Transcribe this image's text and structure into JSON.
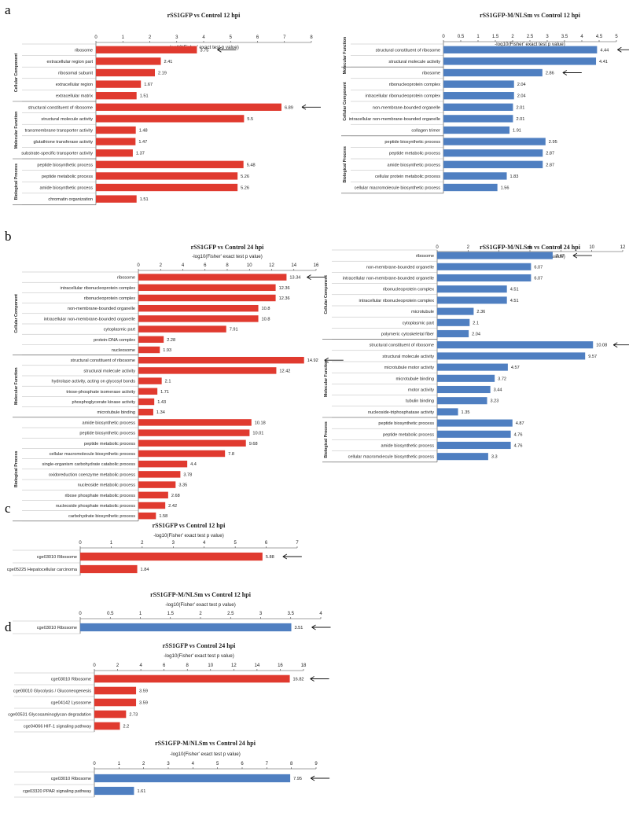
{
  "panels": [
    {
      "letter": "a"
    },
    {
      "letter": "b"
    },
    {
      "letter": "c"
    },
    {
      "letter": "d"
    }
  ],
  "colors": {
    "red": "#e03a2f",
    "blue": "#4f7fc1",
    "axis": "#444444",
    "text": "#222222"
  },
  "chart_data": [
    {
      "id": "a-left",
      "panel": "a",
      "type": "bar",
      "orientation": "horizontal",
      "title": "rSS1GFP vs Control 12 hpi",
      "xlabel": "-log10(Fisher' exact test p value)",
      "xlim": [
        0,
        8
      ],
      "xticks": [
        "0",
        "1",
        "2",
        "3",
        "4",
        "5",
        "6",
        "7",
        "8"
      ],
      "color": "red",
      "grouped": true,
      "categories": [
        "ribosome",
        "extracellular region part",
        "ribosomal subunit",
        "extracellular region",
        "extracellular matrix",
        "structural constituent of ribosome",
        "structural molecule activity",
        "transmembrane transporter activity",
        "glutathione transferase activity",
        "substrate-specific transporter activity",
        "peptide biosynthetic process",
        "peptide metabolic process",
        "amide biosynthetic process",
        "chromatin organization"
      ],
      "values": [
        3.75,
        2.41,
        2.19,
        1.67,
        1.51,
        6.89,
        5.5,
        1.48,
        1.47,
        1.37,
        5.48,
        5.26,
        5.26,
        1.51
      ],
      "value_labels": [
        "3.75",
        "2.41",
        "2.19",
        "1.67",
        "1.51",
        "6.89",
        "5.5",
        "1.48",
        "1.47",
        "1.37",
        "5.48",
        "5.26",
        "5.26",
        "1.51"
      ],
      "groups": [
        {
          "name": "Cellular Component",
          "start": 0,
          "end": 4
        },
        {
          "name": "Molecular Function",
          "start": 5,
          "end": 9
        },
        {
          "name": "Biological Process",
          "start": 10,
          "end": 13
        }
      ],
      "arrows": [
        0,
        5
      ]
    },
    {
      "id": "a-right",
      "panel": "a",
      "type": "bar",
      "orientation": "horizontal",
      "title": "rSS1GFP-M/NLSm vs Control 12 hpi",
      "xlabel": "-log10(Fisher' exact test p value)",
      "xlim": [
        0,
        5
      ],
      "xticks": [
        "0",
        "0.5",
        "1",
        "1.5",
        "2",
        "2.5",
        "3",
        "3.5",
        "4",
        "4.5",
        "5"
      ],
      "color": "blue",
      "grouped": true,
      "categories": [
        "structural constituent of ribosome",
        "structural molecule activity",
        "ribosome",
        "ribonucleoprotein complex",
        "intracellular ribonucleoprotein complex",
        "non-membrane-bounded organelle",
        "intracellular non-membrane-bounded organelle",
        "collagen trimer",
        "peptide biosynthetic process",
        "peptide metabolic process",
        "amide biosynthetic process",
        "cellular protein metabolic process",
        "cellular macromolecule biosynthetic process"
      ],
      "values": [
        4.44,
        4.41,
        2.86,
        2.04,
        2.04,
        2.01,
        2.01,
        1.91,
        2.95,
        2.87,
        2.87,
        1.83,
        1.56
      ],
      "value_labels": [
        "4.44",
        "4.41",
        "2.86",
        "2.04",
        "2.04",
        "2.01",
        "2.01",
        "1.91",
        "2.95",
        "2.87",
        "2.87",
        "1.83",
        "1.56"
      ],
      "groups": [
        {
          "name": "Molecular Function",
          "start": 0,
          "end": 1
        },
        {
          "name": "Cellular Component",
          "start": 2,
          "end": 7
        },
        {
          "name": "Biological Process",
          "start": 8,
          "end": 12
        }
      ],
      "arrows": [
        0,
        2
      ]
    },
    {
      "id": "b-left",
      "panel": "b",
      "type": "bar",
      "orientation": "horizontal",
      "title": "rSS1GFP vs Control  24 hpi",
      "xlabel": "-log10(Fisher' exact test p value)",
      "xlim": [
        0,
        16
      ],
      "xticks": [
        "0",
        "2",
        "4",
        "6",
        "8",
        "10",
        "12",
        "14",
        "16"
      ],
      "color": "red",
      "grouped": true,
      "categories": [
        "ribosome",
        "intracellular ribonucleoprotein complex",
        "ribonucleoprotein complex",
        "non-membrane-bounded organelle",
        "intracellular non-membrane-bounded organelle",
        "cytoplasmic part",
        "protein-DNA complex",
        "nucleosome",
        "structural constituent of ribosome",
        "structural molecule activity",
        "hydrolase activity, acting on glycosyl bonds",
        "triose-phosphate isomerase activity",
        "phosphoglycerate kinase activity",
        "microtubule binding",
        "amide biosynthetic process",
        "peptide biosynthetic process",
        "peptide metabolic process",
        "cellular macromolecule biosynthetic process",
        "single-organism carbohydrate catabolic process",
        "oxidoreduction coenzyme metabolic process",
        "nucleoside metabolic process",
        "ribose phosphate metabolic process",
        "nucleoside phosphate metabolic process",
        "carbohydrate biosynthetic process"
      ],
      "values": [
        13.34,
        12.36,
        12.36,
        10.8,
        10.8,
        7.91,
        2.28,
        1.93,
        14.92,
        12.42,
        2.1,
        1.71,
        1.43,
        1.34,
        10.18,
        10.01,
        9.68,
        7.8,
        4.4,
        3.78,
        3.35,
        2.68,
        2.42,
        1.58
      ],
      "value_labels": [
        "13.34",
        "12.36",
        "12.36",
        "10.8",
        "10.8",
        "7.91",
        "2.28",
        "1.93",
        "14.92",
        "12.42",
        "2.1",
        "1.71",
        "1.43",
        "1.34",
        "10.18",
        "10.01",
        "9.68",
        "7.8",
        "4.4",
        "3.78",
        "3.35",
        "2.68",
        "2.42",
        "1.58"
      ],
      "groups": [
        {
          "name": "Cellular Component",
          "start": 0,
          "end": 7
        },
        {
          "name": "Molecular Function",
          "start": 8,
          "end": 13
        },
        {
          "name": "Biological Process",
          "start": 14,
          "end": 23
        }
      ],
      "arrows": [
        0,
        8
      ]
    },
    {
      "id": "b-right",
      "panel": "b",
      "type": "bar",
      "orientation": "horizontal",
      "title": "rSS1GFP-M/NLSm vs Control  24 hpi",
      "xlabel": "-log10(Fisher' exact test p value)",
      "xlim": [
        0,
        12
      ],
      "xticks": [
        "0",
        "2",
        "4",
        "6",
        "8",
        "10",
        "12"
      ],
      "color": "blue",
      "grouped": true,
      "categories": [
        "ribosome",
        "non-membrane-bounded organelle",
        "intracellular non-membrane-bounded organelle",
        "ribonucleoprotein complex",
        "intracellular ribonucleoprotein complex",
        "microtubule",
        "cytoplasmic part",
        "polymeric cytoskeletal fiber",
        "structural constituent of ribosome",
        "structural molecule activity",
        "microtubule motor activity",
        "microtubule binding",
        "motor activity",
        "tubulin binding",
        "nucleoside-triphosphatase activity",
        "peptide biosynthetic process",
        "peptide metabolic process",
        "amide biosynthetic process",
        "cellular macromolecule biosynthetic process"
      ],
      "values": [
        7.47,
        6.07,
        6.07,
        4.51,
        4.51,
        2.36,
        2.1,
        2.04,
        10.08,
        9.57,
        4.57,
        3.72,
        3.44,
        3.23,
        1.35,
        4.87,
        4.76,
        4.76,
        3.3
      ],
      "value_labels": [
        "7.47",
        "6.07",
        "6.07",
        "4.51",
        "4.51",
        "2.36",
        "2.1",
        "2.04",
        "10.08",
        "9.57",
        "4.57",
        "3.72",
        "3.44",
        "3.23",
        "1.35",
        "4.87",
        "4.76",
        "4.76",
        "3.3"
      ],
      "groups": [
        {
          "name": "Cellular Component",
          "start": 0,
          "end": 7
        },
        {
          "name": "Molecular Function",
          "start": 8,
          "end": 14
        },
        {
          "name": "Biological Process",
          "start": 15,
          "end": 18
        }
      ],
      "arrows": [
        0,
        8
      ]
    },
    {
      "id": "c-top",
      "panel": "c",
      "type": "bar",
      "orientation": "horizontal",
      "title": "rSS1GFP vs Control  12 hpi",
      "xlabel": "-log10(Fisher' exact test p value)",
      "xlim": [
        0,
        7
      ],
      "xticks": [
        "0",
        "1",
        "2",
        "3",
        "4",
        "5",
        "6",
        "7"
      ],
      "color": "red",
      "grouped": false,
      "categories": [
        "cge03010 Ribosome",
        "cge05225 Hepatocellular carcinoma"
      ],
      "values": [
        5.88,
        1.84
      ],
      "value_labels": [
        "5.88",
        "1.84"
      ],
      "groups": [],
      "arrows": [
        0
      ]
    },
    {
      "id": "c-bottom",
      "panel": "c",
      "type": "bar",
      "orientation": "horizontal",
      "title": "rSS1GFP-M/NLSm vs Control  12 hpi",
      "xlabel": "-log10(Fisher' exact test p value)",
      "xlim": [
        0,
        4
      ],
      "xticks": [
        "0",
        "0.5",
        "1",
        "1.5",
        "2",
        "2.5",
        "3",
        "3.5",
        "4"
      ],
      "color": "blue",
      "grouped": false,
      "categories": [
        "cge03010 Ribosome"
      ],
      "values": [
        3.51
      ],
      "value_labels": [
        "3.51"
      ],
      "groups": [],
      "arrows": [
        0
      ]
    },
    {
      "id": "d-top",
      "panel": "d",
      "type": "bar",
      "orientation": "horizontal",
      "title": "rSS1GFP vs Control  24 hpi",
      "xlabel": "-log10(Fisher' exact test p value)",
      "xlim": [
        0,
        18
      ],
      "xticks": [
        "0",
        "2",
        "4",
        "6",
        "8",
        "10",
        "12",
        "14",
        "16",
        "18"
      ],
      "color": "red",
      "grouped": false,
      "categories": [
        "cge03010 Ribosome",
        "cge00010 Glycolysis / Gluconeogenesis",
        "cge04142 Lysosome",
        "cge00531 Glycosaminoglycan degradation",
        "cge04066 HIF-1 signaling pathway"
      ],
      "values": [
        16.82,
        3.59,
        3.59,
        2.73,
        2.2
      ],
      "value_labels": [
        "16.82",
        "3.59",
        "3.59",
        "2.73",
        "2.2"
      ],
      "groups": [],
      "arrows": [
        0
      ]
    },
    {
      "id": "d-bottom",
      "panel": "d",
      "type": "bar",
      "orientation": "horizontal",
      "title": "rSS1GFP-M/NLSm vs Control  24 hpi",
      "xlabel": "-log10(Fisher' exact test p value)",
      "xlim": [
        0,
        9
      ],
      "xticks": [
        "0",
        "1",
        "2",
        "3",
        "4",
        "5",
        "6",
        "7",
        "8",
        "9"
      ],
      "color": "blue",
      "grouped": false,
      "categories": [
        "cge03010 Ribosome",
        "cge03320 PPAR signaling pathway"
      ],
      "values": [
        7.95,
        1.61
      ],
      "value_labels": [
        "7.95",
        "1.61"
      ],
      "groups": [],
      "arrows": [
        0
      ]
    }
  ]
}
